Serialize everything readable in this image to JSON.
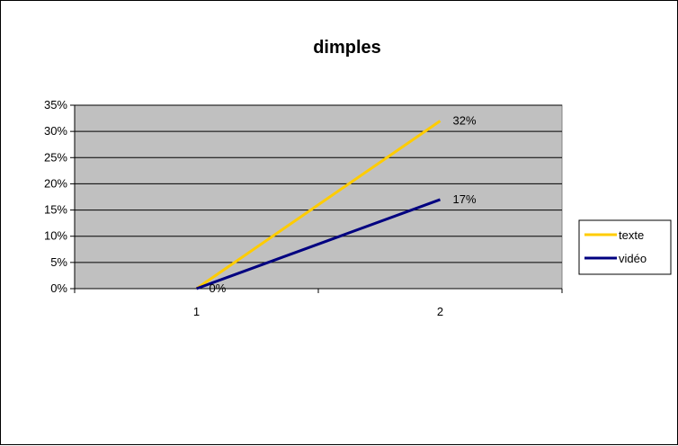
{
  "chart_data": {
    "type": "line",
    "title": "dimples",
    "xlabel": "",
    "ylabel": "",
    "categories": [
      "1",
      "2"
    ],
    "ylim": [
      0,
      0.35
    ],
    "yticks": [
      0,
      0.05,
      0.1,
      0.15,
      0.2,
      0.25,
      0.3,
      0.35
    ],
    "ytick_labels": [
      "0%",
      "5%",
      "10%",
      "15%",
      "20%",
      "25%",
      "30%",
      "35%"
    ],
    "grid": true,
    "legend_position": "right",
    "plot_background": "#c0c0c0",
    "series": [
      {
        "name": "texte",
        "values": [
          0,
          0.32
        ],
        "labels": [
          "",
          "32%"
        ],
        "color": "#ffcc00"
      },
      {
        "name": "vidéo",
        "values": [
          0,
          0.17
        ],
        "labels": [
          "0%",
          "17%"
        ],
        "color": "#000080"
      }
    ]
  }
}
